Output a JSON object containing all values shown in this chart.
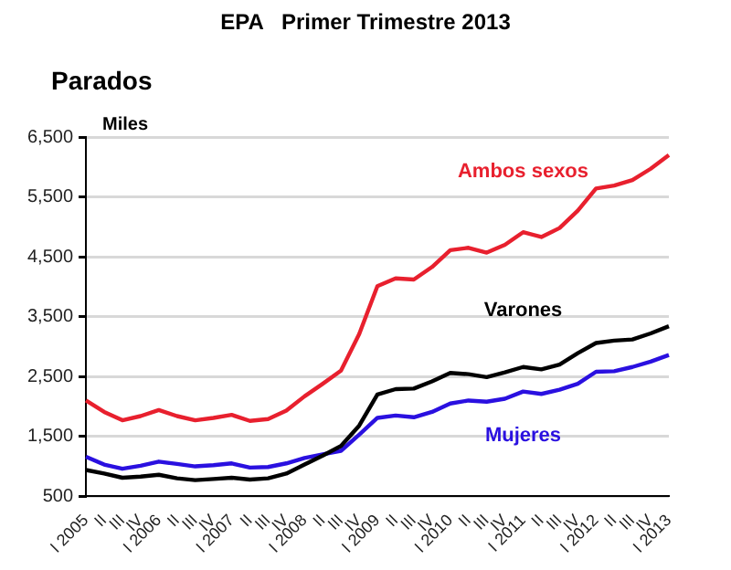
{
  "chart_data": {
    "type": "line",
    "title": "EPA   Primer Trimestre 2013",
    "subtitle": "Parados",
    "ylabel": "Miles",
    "categories": [
      "I 2005",
      "II",
      "III",
      "IV",
      "I 2006",
      "II",
      "III",
      "IV",
      "I 2007",
      "II",
      "III",
      "IV",
      "I 2008",
      "II",
      "III",
      "IV",
      "I 2009",
      "II",
      "III",
      "IV",
      "I 2010",
      "II",
      "III",
      "IV",
      "I 2011",
      "II",
      "III",
      "IV",
      "I 2012",
      "II",
      "III",
      "IV",
      "I 2013"
    ],
    "series": [
      {
        "name": "Ambos sexos",
        "color": "#e8202e",
        "values": [
          2100,
          1910,
          1770,
          1840,
          1940,
          1840,
          1770,
          1810,
          1860,
          1760,
          1790,
          1930,
          2170,
          2380,
          2600,
          3210,
          4010,
          4140,
          4120,
          4330,
          4610,
          4650,
          4570,
          4700,
          4910,
          4830,
          4980,
          5270,
          5640,
          5690,
          5780,
          5970,
          6200
        ]
      },
      {
        "name": "Varones",
        "color": "#000000",
        "values": [
          940,
          880,
          810,
          830,
          860,
          800,
          770,
          790,
          810,
          780,
          800,
          880,
          1030,
          1180,
          1340,
          1680,
          2200,
          2290,
          2300,
          2420,
          2560,
          2540,
          2490,
          2570,
          2660,
          2620,
          2700,
          2890,
          3060,
          3100,
          3120,
          3220,
          3340
        ]
      },
      {
        "name": "Mujeres",
        "color": "#2a10e0",
        "values": [
          1160,
          1030,
          960,
          1010,
          1080,
          1040,
          1000,
          1020,
          1050,
          980,
          990,
          1050,
          1140,
          1200,
          1260,
          1530,
          1810,
          1850,
          1820,
          1910,
          2050,
          2100,
          2080,
          2130,
          2250,
          2210,
          2280,
          2380,
          2580,
          2590,
          2660,
          2750,
          2860
        ]
      }
    ],
    "ylim": [
      500,
      6500
    ],
    "yticks": [
      {
        "value": 500,
        "label": "500"
      },
      {
        "value": 1500,
        "label": "1,500"
      },
      {
        "value": 2500,
        "label": "2,500"
      },
      {
        "value": 3500,
        "label": "3,500"
      },
      {
        "value": 4500,
        "label": "4,500"
      },
      {
        "value": 5500,
        "label": "5,500"
      },
      {
        "value": 6500,
        "label": "6,500"
      }
    ],
    "grid": "y",
    "legend": false,
    "marker": "none",
    "line_style": "solid"
  }
}
